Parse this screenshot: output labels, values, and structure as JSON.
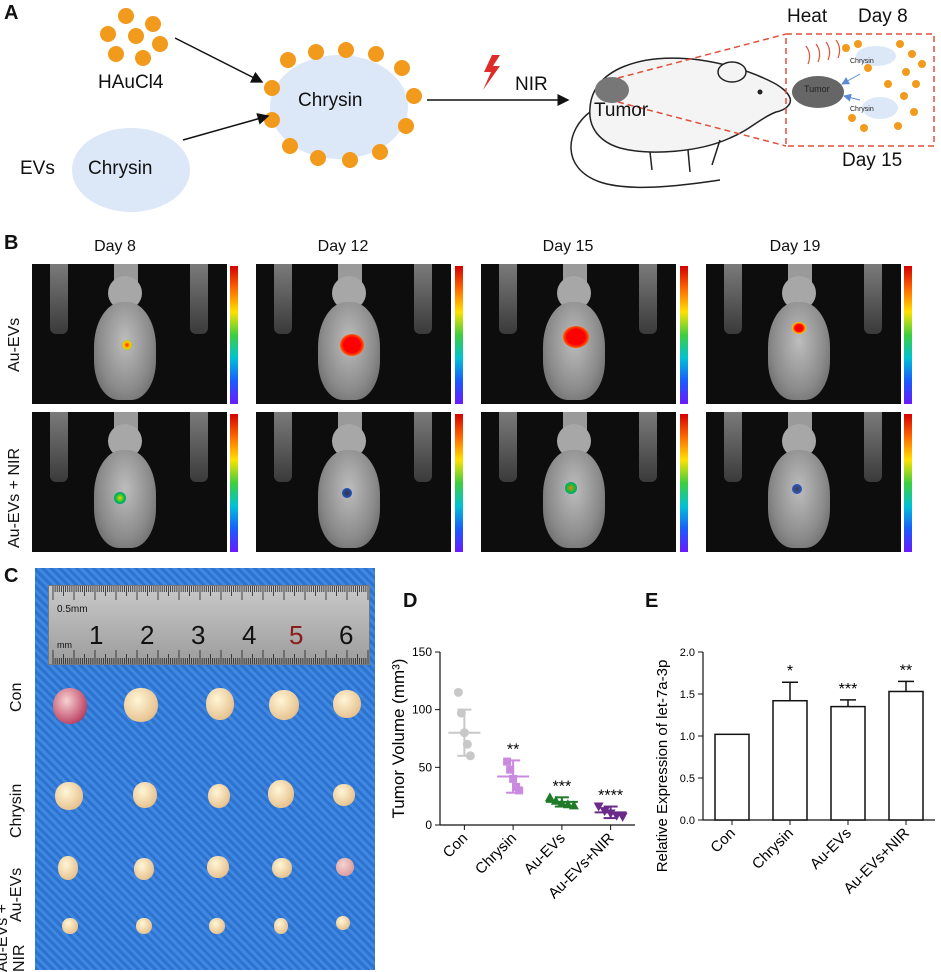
{
  "panels": {
    "a": "A",
    "b": "B",
    "c": "C",
    "d": "D",
    "e": "E"
  },
  "schematic": {
    "haucl4": "HAuCl4",
    "evs": "EVs",
    "chrysin_ev": "Chrysin",
    "chrysin_np": "Chrysin",
    "nir": "NIR",
    "tumor": "Tumor",
    "heat": "Heat",
    "day8": "Day 8",
    "day15": "Day 15",
    "inset_tumor": "Tumor",
    "inset_chrysin1": "Chrysin",
    "inset_chrysin2": "Chrysin"
  },
  "imaging": {
    "days": [
      "Day 8",
      "Day 12",
      "Day 15",
      "Day 19"
    ],
    "rows": [
      "Au-EVs",
      "Au-EVs + NIR"
    ]
  },
  "photo": {
    "ruler_top": "0.5mm",
    "ruler_unit": "mm",
    "ruler_numbers": [
      "1",
      "2",
      "3",
      "4",
      "5",
      "6"
    ],
    "rows": [
      "Con",
      "Chrysin",
      "Au-EVs",
      "Au-EVs + NIR"
    ]
  },
  "chart_data": [
    {
      "type": "scatter",
      "ylabel": "Tumor Volume (mm³)",
      "categories": [
        "Con",
        "Chrysin",
        "Au-EVs",
        "Au-EVs+NIR"
      ],
      "ylim": [
        0,
        150
      ],
      "yticks": [
        0,
        50,
        100,
        150
      ],
      "means": [
        80,
        42,
        20,
        11
      ],
      "sd": [
        20,
        14,
        4,
        5
      ],
      "points": [
        [
          115,
          97,
          80,
          70,
          60
        ],
        [
          55,
          48,
          40,
          33,
          30
        ],
        [
          24,
          21,
          19,
          18,
          17
        ],
        [
          16,
          12,
          10,
          8,
          7
        ]
      ],
      "colors": [
        "#c8c8c8",
        "#c98ae0",
        "#1f7a2a",
        "#6a2a8a"
      ],
      "significance": [
        "",
        "**",
        "***",
        "****"
      ]
    },
    {
      "type": "bar",
      "ylabel": "Relative Expression of let-7a-3p",
      "categories": [
        "Con",
        "Chrysin",
        "Au-EVs",
        "Au-EVs+NIR"
      ],
      "values": [
        1.02,
        1.42,
        1.35,
        1.53
      ],
      "errors": [
        0,
        0.22,
        0.08,
        0.12
      ],
      "ylim": [
        0,
        2.0
      ],
      "yticks": [
        "0.0",
        "0.5",
        "1.0",
        "1.5",
        "2.0"
      ],
      "significance": [
        "",
        "*",
        "***",
        "**"
      ]
    }
  ]
}
